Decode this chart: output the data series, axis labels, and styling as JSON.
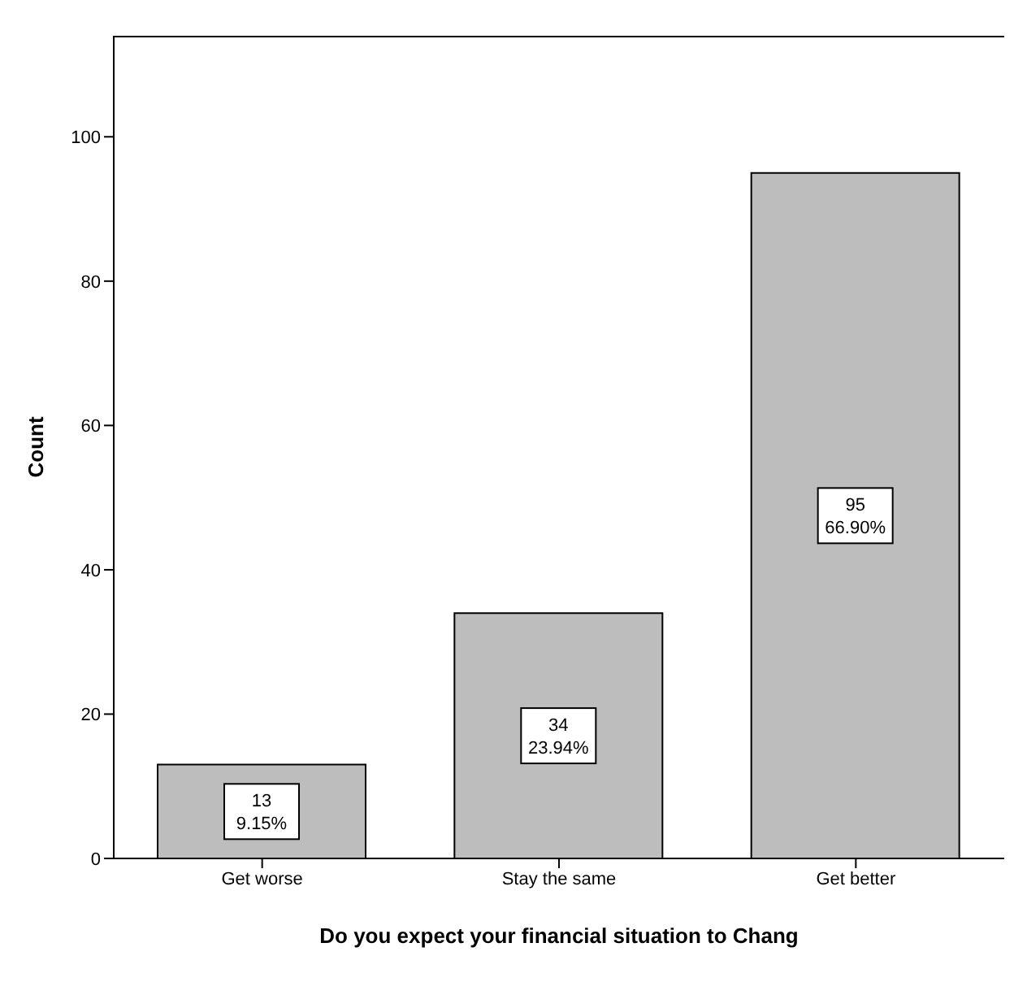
{
  "chart_data": {
    "type": "bar",
    "xlabel": "Do you expect your financial situation to Chang",
    "ylabel": "Count",
    "categories": [
      "Get worse",
      "Stay the same",
      "Get better"
    ],
    "values": [
      13,
      34,
      95
    ],
    "color": "#bdbdbd",
    "value_labels": [
      "13\n9.15%",
      "34\n23.94%",
      "95\n66.90%"
    ],
    "ylim": [
      0,
      114
    ],
    "yticks": [
      0,
      20,
      40,
      60,
      80,
      100
    ],
    "grid": false,
    "legend": false
  }
}
